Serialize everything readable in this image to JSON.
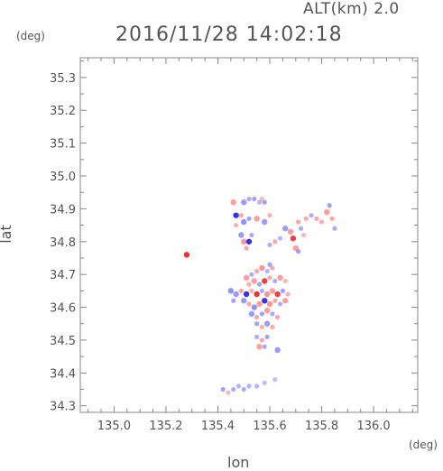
{
  "header": {
    "alt_label": "ALT(km) 2.0",
    "timestamp": "2016/11/28 14:02:18"
  },
  "axes": {
    "y_unit": "(deg)",
    "x_unit": "(deg)",
    "xlabel": "lon",
    "ylabel": "lat"
  },
  "chart_data": {
    "type": "scatter",
    "title": "2016/11/28 14:02:18",
    "xlabel": "lon",
    "ylabel": "lat",
    "xlim": [
      134.87,
      136.17
    ],
    "ylim": [
      34.28,
      35.36
    ],
    "x_ticks": [
      135.0,
      135.2,
      135.4,
      135.6,
      135.8,
      136.0
    ],
    "x_tick_labels": [
      "135.0",
      "135.2",
      "135.4",
      "135.6",
      "135.8",
      "136.0"
    ],
    "y_ticks": [
      34.3,
      34.4,
      34.5,
      34.6,
      34.7,
      34.8,
      34.9,
      35.0,
      35.1,
      35.2,
      35.3
    ],
    "y_tick_labels": [
      "34.3",
      "34.4",
      "34.5",
      "34.6",
      "34.7",
      "34.8",
      "34.9",
      "35.0",
      "35.1",
      "35.2",
      "35.3"
    ],
    "grid": false,
    "colors": {
      "positive": "#ff8080",
      "negative": "#7b7bff",
      "strong_positive": "#e83030",
      "strong_negative": "#2020e0",
      "frame": "#888888"
    },
    "series": [
      {
        "values": [
          [
            135.28,
            34.76,
            0.9
          ],
          [
            135.46,
            34.92,
            0.6
          ],
          [
            135.5,
            34.92,
            -0.6
          ],
          [
            135.52,
            34.93,
            -0.4
          ],
          [
            135.54,
            34.93,
            -0.5
          ],
          [
            135.56,
            34.92,
            -0.3
          ],
          [
            135.57,
            34.93,
            0.3
          ],
          [
            135.58,
            34.92,
            -0.5
          ],
          [
            135.47,
            34.88,
            -0.8
          ],
          [
            135.49,
            34.88,
            0.5
          ],
          [
            135.5,
            34.86,
            -0.7
          ],
          [
            135.47,
            34.85,
            0.4
          ],
          [
            135.52,
            34.87,
            -0.5
          ],
          [
            135.55,
            34.87,
            0.6
          ],
          [
            135.58,
            34.86,
            -0.6
          ],
          [
            135.6,
            34.88,
            0.4
          ],
          [
            135.49,
            34.82,
            -0.6
          ],
          [
            135.5,
            34.8,
            0.7
          ],
          [
            135.52,
            34.8,
            -0.8
          ],
          [
            135.51,
            34.78,
            0.5
          ],
          [
            135.53,
            34.82,
            -0.4
          ],
          [
            135.6,
            34.79,
            -0.4
          ],
          [
            135.62,
            34.8,
            0.5
          ],
          [
            135.64,
            34.81,
            -0.3
          ],
          [
            135.66,
            34.84,
            -0.6
          ],
          [
            135.68,
            34.83,
            0.6
          ],
          [
            135.69,
            34.81,
            0.8
          ],
          [
            135.71,
            34.86,
            0.5
          ],
          [
            135.72,
            34.84,
            -0.4
          ],
          [
            135.73,
            34.82,
            0.3
          ],
          [
            135.7,
            34.78,
            0.6
          ],
          [
            135.71,
            34.77,
            -0.5
          ],
          [
            135.74,
            34.87,
            0.5
          ],
          [
            135.76,
            34.88,
            -0.4
          ],
          [
            135.78,
            34.87,
            0.5
          ],
          [
            135.8,
            34.86,
            0.4
          ],
          [
            135.82,
            34.89,
            0.6
          ],
          [
            135.83,
            34.91,
            -0.5
          ],
          [
            135.84,
            34.87,
            0.5
          ],
          [
            135.85,
            34.84,
            -0.4
          ],
          [
            135.6,
            34.73,
            -0.5
          ],
          [
            135.61,
            34.72,
            0.5
          ],
          [
            135.51,
            34.69,
            0.6
          ],
          [
            135.53,
            34.7,
            -0.4
          ],
          [
            135.55,
            34.71,
            0.5
          ],
          [
            135.57,
            34.72,
            0.7
          ],
          [
            135.59,
            34.71,
            -0.3
          ],
          [
            135.52,
            34.67,
            0.4
          ],
          [
            135.54,
            34.68,
            0.6
          ],
          [
            135.56,
            34.67,
            -0.5
          ],
          [
            135.58,
            34.68,
            0.8
          ],
          [
            135.6,
            34.69,
            0.5
          ],
          [
            135.62,
            34.68,
            -0.4
          ],
          [
            135.64,
            34.69,
            0.6
          ],
          [
            135.66,
            34.68,
            0.3
          ],
          [
            135.45,
            34.65,
            -0.7
          ],
          [
            135.47,
            34.64,
            -0.6
          ],
          [
            135.49,
            34.65,
            0.5
          ],
          [
            135.51,
            34.64,
            -0.8
          ],
          [
            135.53,
            34.65,
            0.4
          ],
          [
            135.55,
            34.64,
            0.9
          ],
          [
            135.57,
            34.65,
            -0.4
          ],
          [
            135.59,
            34.64,
            0.7
          ],
          [
            135.61,
            34.65,
            0.6
          ],
          [
            135.63,
            34.64,
            0.8
          ],
          [
            135.65,
            34.65,
            -0.5
          ],
          [
            135.67,
            34.64,
            0.4
          ],
          [
            135.46,
            34.62,
            -0.5
          ],
          [
            135.5,
            34.62,
            -0.6
          ],
          [
            135.52,
            34.61,
            0.5
          ],
          [
            135.54,
            34.6,
            -0.7
          ],
          [
            135.56,
            34.61,
            0.6
          ],
          [
            135.58,
            34.62,
            -0.8
          ],
          [
            135.6,
            34.61,
            0.7
          ],
          [
            135.62,
            34.62,
            0.5
          ],
          [
            135.64,
            34.61,
            -0.4
          ],
          [
            135.66,
            34.62,
            0.6
          ],
          [
            135.53,
            34.58,
            -0.6
          ],
          [
            135.55,
            34.57,
            0.5
          ],
          [
            135.57,
            34.58,
            -0.5
          ],
          [
            135.59,
            34.59,
            0.6
          ],
          [
            135.61,
            34.58,
            -0.4
          ],
          [
            135.63,
            34.57,
            0.5
          ],
          [
            135.55,
            34.55,
            -0.5
          ],
          [
            135.57,
            34.54,
            0.4
          ],
          [
            135.59,
            34.55,
            -0.6
          ],
          [
            135.61,
            34.54,
            0.5
          ],
          [
            135.55,
            34.51,
            -0.4
          ],
          [
            135.57,
            34.5,
            0.5
          ],
          [
            135.59,
            34.51,
            -0.5
          ],
          [
            135.56,
            34.48,
            0.6
          ],
          [
            135.58,
            34.48,
            -0.4
          ],
          [
            135.63,
            34.47,
            -0.6
          ],
          [
            135.42,
            34.35,
            -0.5
          ],
          [
            135.44,
            34.34,
            0.3
          ],
          [
            135.46,
            34.35,
            -0.4
          ],
          [
            135.48,
            34.36,
            -0.3
          ],
          [
            135.5,
            34.35,
            -0.4
          ],
          [
            135.52,
            34.36,
            -0.3
          ],
          [
            135.55,
            34.36,
            -0.3
          ],
          [
            135.58,
            34.37,
            -0.2
          ],
          [
            135.62,
            34.38,
            -0.2
          ]
        ]
      }
    ]
  }
}
